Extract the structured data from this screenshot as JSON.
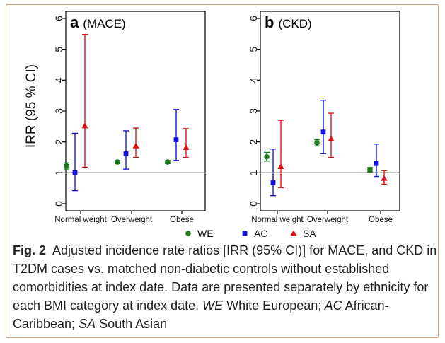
{
  "figure": {
    "ylabel": "IRR (95 % CI)",
    "legend": [
      {
        "code": "WE",
        "color": "#1f7a1f",
        "marker": "circle"
      },
      {
        "code": "AC",
        "color": "#1414e0",
        "marker": "square"
      },
      {
        "code": "SA",
        "color": "#e01414",
        "marker": "triangle"
      }
    ]
  },
  "chart_data": [
    {
      "type": "scatter",
      "panel_letter": "a",
      "panel_title": "(MACE)",
      "categories": [
        "Normal weight",
        "Overweight",
        "Obese"
      ],
      "ylim": [
        0,
        6
      ],
      "yticks": [
        0,
        1,
        2,
        3,
        4,
        5,
        6
      ],
      "reference_line": 1,
      "series": [
        {
          "name": "WE",
          "color": "#1f7a1f",
          "values": [
            1.22,
            1.35,
            1.35
          ],
          "lower": [
            1.12,
            1.3,
            1.3
          ],
          "upper": [
            1.32,
            1.4,
            1.4
          ]
        },
        {
          "name": "AC",
          "color": "#1414e0",
          "values": [
            1.0,
            1.62,
            2.07
          ],
          "lower": [
            0.42,
            1.12,
            1.4
          ],
          "upper": [
            2.28,
            2.36,
            3.05
          ]
        },
        {
          "name": "SA",
          "color": "#e01414",
          "values": [
            2.52,
            1.87,
            1.82
          ],
          "lower": [
            1.18,
            1.5,
            1.5
          ],
          "upper": [
            5.48,
            2.45,
            2.43
          ]
        }
      ]
    },
    {
      "type": "scatter",
      "panel_letter": "b",
      "panel_title": "(CKD)",
      "categories": [
        "Normal weight",
        "Overweight",
        "Obese"
      ],
      "ylim": [
        0,
        6
      ],
      "yticks": [
        0,
        1,
        2,
        3,
        4,
        5,
        6
      ],
      "reference_line": 1,
      "series": [
        {
          "name": "WE",
          "color": "#1f7a1f",
          "values": [
            1.52,
            1.97,
            1.1
          ],
          "lower": [
            1.38,
            1.87,
            1.03
          ],
          "upper": [
            1.66,
            2.07,
            1.17
          ]
        },
        {
          "name": "AC",
          "color": "#1414e0",
          "values": [
            0.68,
            2.32,
            1.3
          ],
          "lower": [
            0.26,
            1.62,
            0.88
          ],
          "upper": [
            1.77,
            3.35,
            1.93
          ]
        },
        {
          "name": "SA",
          "color": "#e01414",
          "values": [
            1.2,
            2.1,
            0.82
          ],
          "lower": [
            0.52,
            1.5,
            0.63
          ],
          "upper": [
            2.7,
            2.93,
            1.07
          ]
        }
      ]
    }
  ],
  "caption": {
    "label": "Fig. 2",
    "text": "Adjusted incidence rate ratios [IRR (95% CI)] for MACE, and CKD in T2DM cases vs. matched non-diabetic controls without established comorbidities at index date. Data are presented separately by ethnicity for each BMI category at index date.",
    "abbreviations": [
      {
        "abbr": "WE",
        "meaning": "White European"
      },
      {
        "abbr": "AC",
        "meaning": "African-Caribbean"
      },
      {
        "abbr": "SA",
        "meaning": "South Asian"
      }
    ]
  }
}
